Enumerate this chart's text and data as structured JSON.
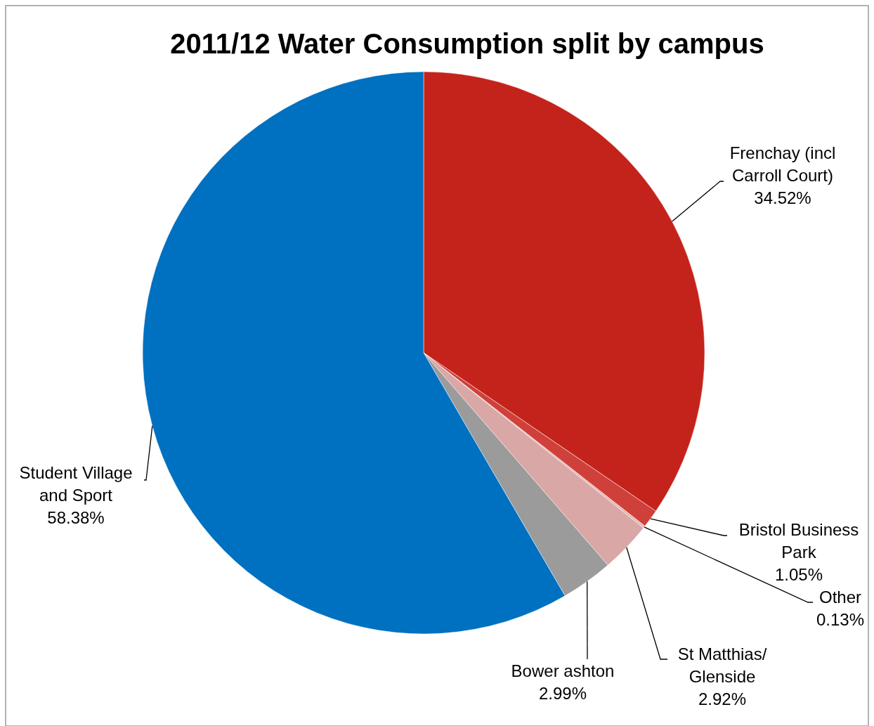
{
  "chart_data": {
    "type": "pie",
    "title": "2011/12 Water Consumption split by campus",
    "categories": [
      "Frenchay (incl Carroll Court)",
      "Bristol Business Park",
      "Other",
      "St Matthias/ Glenside",
      "Bower ashton",
      "Student Village and Sport"
    ],
    "values": [
      34.52,
      1.05,
      0.13,
      2.92,
      2.99,
      58.38
    ],
    "colors": [
      "#c3231b",
      "#d0403a",
      "#e8b5b2",
      "#d9a7a5",
      "#9b9b9b",
      "#0070c0"
    ],
    "value_labels": [
      "34.52%",
      "1.05%",
      "0.13%",
      "2.92%",
      "2.99%",
      "58.38%"
    ],
    "legend": false
  }
}
